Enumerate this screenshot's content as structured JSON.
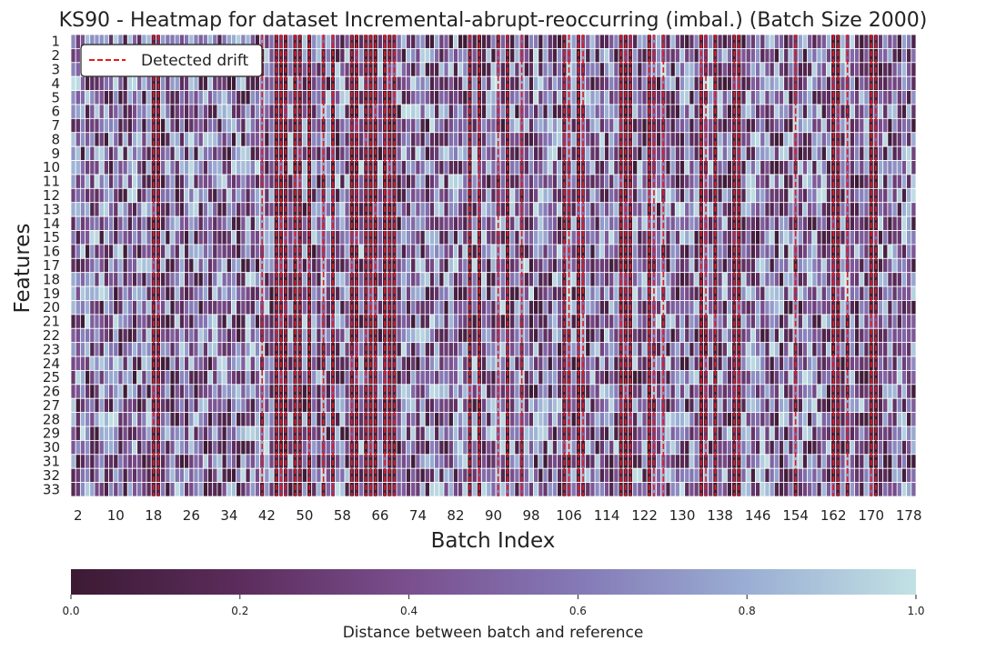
{
  "chart_data": {
    "type": "heatmap",
    "title": "KS90 - Heatmap for dataset Incremental-abrupt-reoccurring (imbal.) (Batch Size 2000)",
    "xlabel": "Batch Index",
    "ylabel": "Features",
    "x_range": [
      1,
      179
    ],
    "x_tick_labels": [
      "2",
      "10",
      "18",
      "26",
      "34",
      "42",
      "50",
      "58",
      "66",
      "74",
      "82",
      "90",
      "98",
      "106",
      "114",
      "122",
      "130",
      "138",
      "146",
      "154",
      "162",
      "170",
      "178"
    ],
    "y_tick_labels": [
      "1",
      "2",
      "3",
      "4",
      "5",
      "6",
      "7",
      "8",
      "9",
      "10",
      "11",
      "12",
      "13",
      "14",
      "15",
      "16",
      "17",
      "18",
      "19",
      "20",
      "21",
      "22",
      "23",
      "24",
      "25",
      "26",
      "27",
      "28",
      "29",
      "30",
      "31",
      "32",
      "33"
    ],
    "colorbar": {
      "label": "Distance between batch and reference",
      "range": [
        0.0,
        1.0
      ],
      "tick_labels": [
        "0.0",
        "0.2",
        "0.4",
        "0.6",
        "0.8",
        "1.0"
      ],
      "colors": [
        "#3c1a33",
        "#5b2c5c",
        "#7a4f8e",
        "#8479b6",
        "#9aaed3",
        "#c2e1e4"
      ]
    },
    "legend": {
      "label": "Detected drift",
      "position": "upper left",
      "line_color": "#e41a1c",
      "line_style": "dashed"
    },
    "drift_batches": [
      18,
      19,
      41,
      44,
      45,
      46,
      48,
      49,
      51,
      54,
      56,
      60,
      61,
      63,
      64,
      65,
      67,
      68,
      69,
      85,
      87,
      91,
      93,
      96,
      105,
      106,
      108,
      109,
      117,
      118,
      119,
      123,
      124,
      126,
      134,
      135,
      137,
      141,
      142,
      154,
      162,
      163,
      165,
      170,
      171
    ],
    "strong_columns": [
      18,
      19,
      44,
      45,
      46,
      48,
      49,
      51,
      56,
      60,
      61,
      63,
      64,
      65,
      67,
      68,
      69,
      85,
      87,
      93,
      105,
      108,
      117,
      118,
      119,
      123,
      134,
      137,
      141,
      142,
      162,
      163,
      170,
      171
    ]
  }
}
